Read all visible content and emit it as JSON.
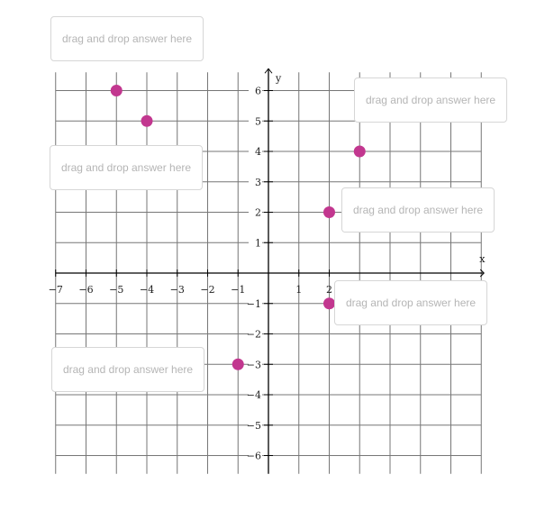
{
  "chart_data": {
    "type": "scatter",
    "xlabel": "x",
    "ylabel": "y",
    "xlim": [
      -7,
      7
    ],
    "ylim": [
      -6.6,
      6.6
    ],
    "grid": true,
    "x_ticks": [
      -7,
      -6,
      -5,
      -4,
      -3,
      -2,
      -1,
      1,
      2
    ],
    "y_ticks": [
      6,
      5,
      4,
      3,
      2,
      1,
      -1,
      -2,
      -3,
      -4,
      -5,
      -6
    ],
    "points": [
      {
        "x": -5,
        "y": 6
      },
      {
        "x": -4,
        "y": 5
      },
      {
        "x": 3,
        "y": 4
      },
      {
        "x": 2,
        "y": 2
      },
      {
        "x": 2,
        "y": -1
      },
      {
        "x": -1,
        "y": -3
      }
    ],
    "point_color": "#c2378f"
  },
  "drop_zones": [
    {
      "label": "drag and drop answer here"
    },
    {
      "label": "drag and drop answer here"
    },
    {
      "label": "drag and drop answer here"
    },
    {
      "label": "drag and drop answer here"
    },
    {
      "label": "drag and drop answer here"
    },
    {
      "label": "drag and drop answer here"
    }
  ]
}
